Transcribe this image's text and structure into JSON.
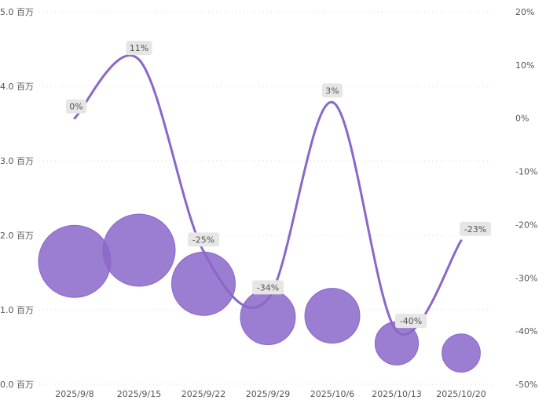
{
  "chart_data": {
    "type": "bubble+line",
    "categories": [
      "2025/9/8",
      "2025/9/15",
      "2025/9/22",
      "2025/9/29",
      "2025/10/6",
      "2025/10/13",
      "2025/10/20"
    ],
    "left_axis": {
      "ticks": [
        "0.0 百万",
        "1.0 百万",
        "2.0 百万",
        "3.0 百万",
        "4.0 百万",
        "5.0 百万"
      ],
      "range": [
        0,
        5
      ]
    },
    "right_axis": {
      "ticks": [
        "-50%",
        "-40%",
        "-30%",
        "-20%",
        "-10%",
        "0%",
        "10%",
        "20%"
      ],
      "range": [
        -50,
        20
      ]
    },
    "bubbles": {
      "values": [
        1.65,
        1.8,
        1.35,
        0.9,
        0.92,
        0.55,
        0.42
      ],
      "relative_size": [
        1.0,
        1.0,
        0.88,
        0.76,
        0.76,
        0.6,
        0.53
      ]
    },
    "line": {
      "values": [
        0,
        11,
        -25,
        -34,
        3,
        -40,
        -23
      ],
      "labels": [
        "0%",
        "11%",
        "-25%",
        "-34%",
        "3%",
        "-40%",
        "-23%"
      ]
    },
    "grid": true,
    "colors": {
      "bubble": "#8a67c9",
      "line": "#8a67c9",
      "label_bg": "#e6e6e6"
    }
  }
}
